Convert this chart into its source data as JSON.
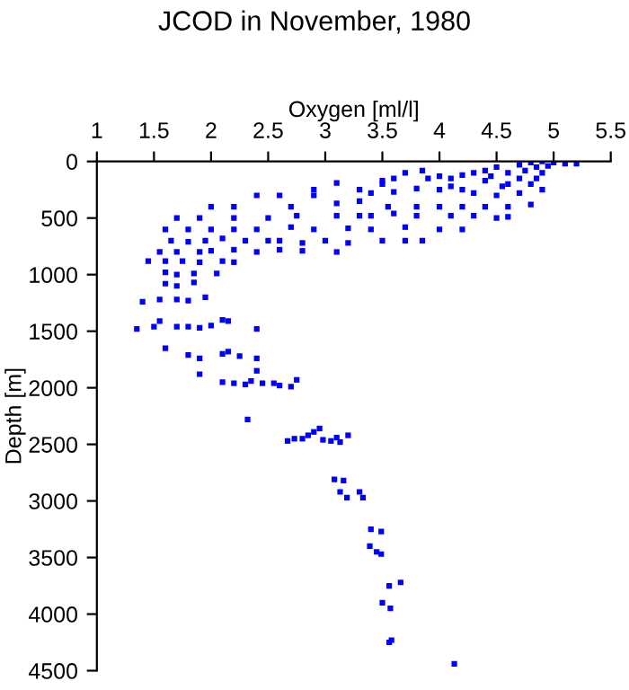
{
  "chart_data": {
    "type": "scatter",
    "title": "JCOD in November, 1980",
    "xlabel": "Oxygen [ml/l]",
    "ylabel": "Depth [m]",
    "xlim": [
      1,
      5.5
    ],
    "xticks": [
      1,
      1.5,
      2,
      2.5,
      3,
      3.5,
      4,
      4.5,
      5,
      5.5
    ],
    "ylim": [
      4500,
      0
    ],
    "yticks": [
      0,
      500,
      1000,
      1500,
      2000,
      2500,
      3000,
      3500,
      4000,
      4500
    ],
    "marker": "square",
    "grid": false,
    "series": [
      {
        "color": "#0000ff",
        "x": [
          5.2,
          5.1,
          5.0,
          4.9,
          4.8,
          4.7,
          4.85,
          4.95,
          4.75,
          4.6,
          4.9,
          4.5,
          4.4,
          4.3,
          4.2,
          4.1,
          4.0,
          3.85,
          3.9,
          3.7,
          3.6,
          3.5,
          3.5,
          4.4,
          4.6,
          4.8,
          4.9,
          4.7,
          4.5,
          4.3,
          4.2,
          4.1,
          4.0,
          3.8,
          3.6,
          3.4,
          3.3,
          3.1,
          2.9,
          2.9,
          2.6,
          2.4,
          3.1,
          3.3,
          4.55,
          4.7,
          4.85,
          4.45,
          2.0,
          2.2,
          2.7,
          3.55,
          3.8,
          4.0,
          4.2,
          4.4,
          4.6,
          4.8,
          1.7,
          1.9,
          2.2,
          2.5,
          2.75,
          3.1,
          3.3,
          3.4,
          3.6,
          3.8,
          4.1,
          4.3,
          4.5,
          4.6,
          1.6,
          1.8,
          2.0,
          2.2,
          2.4,
          2.7,
          2.9,
          3.2,
          3.4,
          3.7,
          4.0,
          4.2,
          1.65,
          1.8,
          1.95,
          2.1,
          2.3,
          2.5,
          2.6,
          2.8,
          3.0,
          3.2,
          3.5,
          3.7,
          3.85,
          1.55,
          1.7,
          1.9,
          2.0,
          2.2,
          2.4,
          2.6,
          2.8,
          3.1,
          1.45,
          1.6,
          1.75,
          1.9,
          2.1,
          2.2,
          1.6,
          1.7,
          1.85,
          2.05,
          1.6,
          1.7,
          1.85,
          1.4,
          1.55,
          1.7,
          1.8,
          1.95,
          1.35,
          1.5,
          1.55,
          1.7,
          1.8,
          1.9,
          2.0,
          2.1,
          2.15,
          2.4,
          1.6,
          1.8,
          1.9,
          2.1,
          2.15,
          2.25,
          2.4,
          1.9,
          2.1,
          2.2,
          2.3,
          2.35,
          2.4,
          2.45,
          2.55,
          2.6,
          2.7,
          2.75,
          2.32,
          2.67,
          2.73,
          2.8,
          2.85,
          2.9,
          2.95,
          2.98,
          3.05,
          3.1,
          3.13,
          3.2,
          3.08,
          3.16,
          3.13,
          3.19,
          3.3,
          3.33,
          3.4,
          3.49,
          3.39,
          3.45,
          3.49,
          3.66,
          3.56,
          3.5,
          3.57,
          3.56,
          3.58,
          4.13
        ],
        "values": [
          20,
          20,
          10,
          0,
          10,
          30,
          50,
          40,
          80,
          100,
          100,
          50,
          80,
          100,
          120,
          150,
          130,
          80,
          150,
          100,
          150,
          170,
          200,
          170,
          200,
          200,
          250,
          280,
          300,
          280,
          250,
          220,
          250,
          240,
          270,
          280,
          250,
          190,
          250,
          300,
          300,
          300,
          370,
          350,
          220,
          150,
          150,
          130,
          400,
          400,
          400,
          400,
          400,
          400,
          400,
          400,
          400,
          380,
          500,
          500,
          500,
          500,
          480,
          480,
          480,
          480,
          460,
          480,
          480,
          480,
          500,
          490,
          600,
          600,
          600,
          600,
          600,
          580,
          600,
          590,
          600,
          580,
          600,
          600,
          700,
          710,
          700,
          680,
          700,
          700,
          700,
          720,
          700,
          720,
          700,
          700,
          700,
          800,
          800,
          800,
          790,
          780,
          800,
          780,
          790,
          800,
          880,
          880,
          880,
          890,
          880,
          890,
          980,
          1000,
          990,
          990,
          1080,
          1100,
          1070,
          1240,
          1220,
          1220,
          1230,
          1200,
          1480,
          1460,
          1410,
          1460,
          1460,
          1470,
          1450,
          1400,
          1410,
          1480,
          1650,
          1710,
          1740,
          1700,
          1680,
          1720,
          1740,
          1880,
          1950,
          1960,
          1970,
          1940,
          1850,
          1960,
          1960,
          1980,
          1990,
          1930,
          2280,
          2470,
          2450,
          2450,
          2420,
          2390,
          2360,
          2460,
          2470,
          2440,
          2480,
          2420,
          2810,
          2820,
          2920,
          2970,
          2920,
          2970,
          3250,
          3270,
          3400,
          3450,
          3470,
          3720,
          3750,
          3900,
          3950,
          4250,
          4230,
          4440
        ]
      }
    ]
  }
}
